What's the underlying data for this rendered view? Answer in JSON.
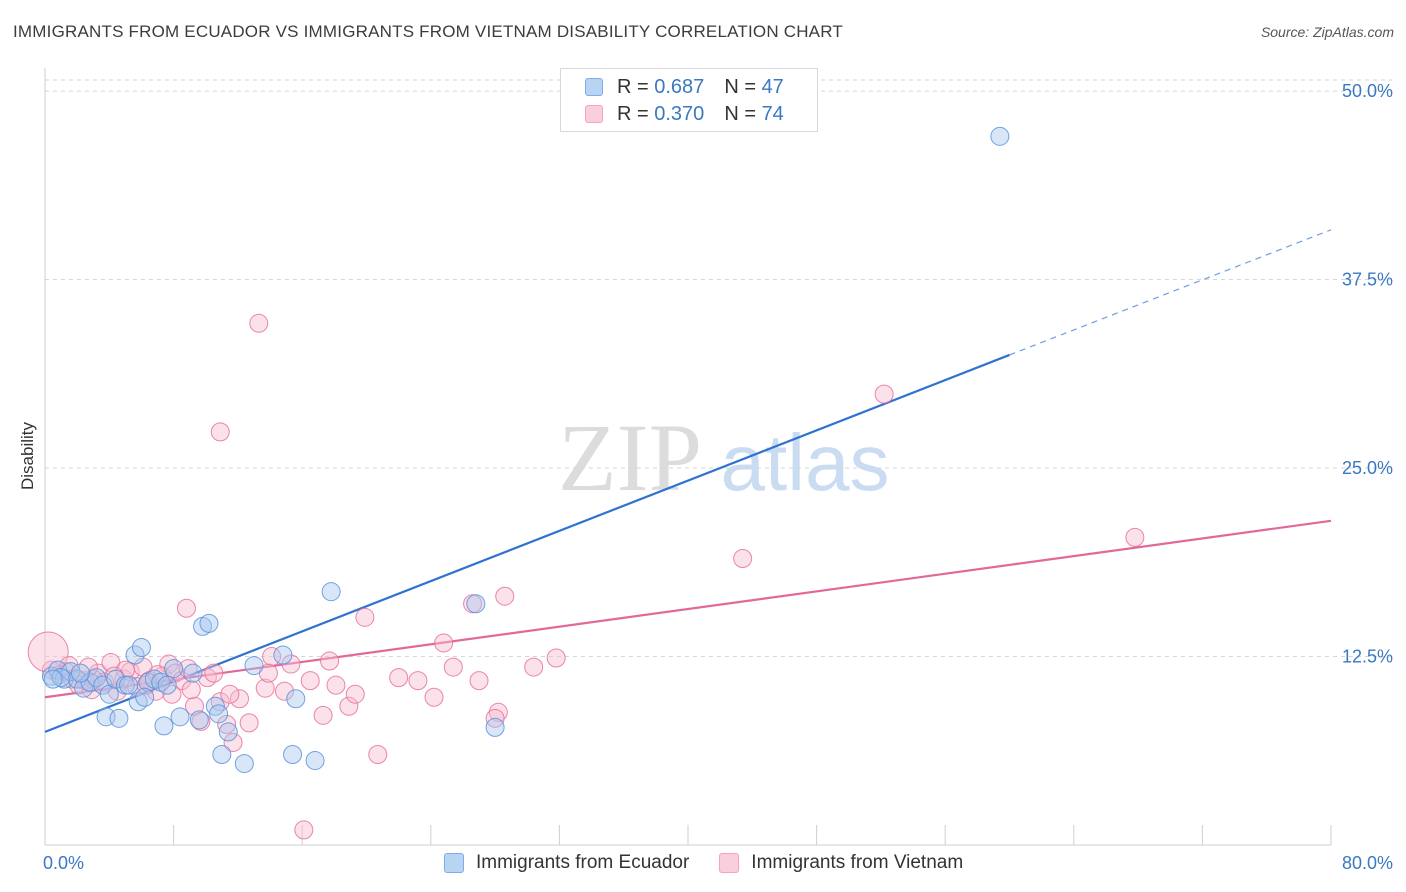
{
  "title": "IMMIGRANTS FROM ECUADOR VS IMMIGRANTS FROM VIETNAM DISABILITY CORRELATION CHART",
  "source": "Source: ZipAtlas.com",
  "watermark": {
    "zip": "ZIP",
    "atlas": "atlas"
  },
  "legend": [
    {
      "r_label": "R =",
      "r_value": "0.687",
      "n_label": "N =",
      "n_value": "47",
      "color": "#7aaeea"
    },
    {
      "r_label": "R =",
      "r_value": "0.370",
      "n_label": "N =",
      "n_value": "74",
      "color": "#f4a4bf"
    }
  ],
  "bottom_legend": [
    "Immigrants from Ecuador",
    "Immigrants from Vietnam"
  ],
  "chart_data": {
    "type": "scatter",
    "title": "IMMIGRANTS FROM ECUADOR VS IMMIGRANTS FROM VIETNAM DISABILITY CORRELATION CHART",
    "xlabel": "",
    "ylabel": "Disability",
    "xlim": [
      0,
      80
    ],
    "ylim": [
      0,
      51
    ],
    "x_tick_labels": [
      "0.0%",
      "80.0%"
    ],
    "y_ticks": [
      12.5,
      25.0,
      37.5,
      50.0
    ],
    "y_tick_labels": [
      "12.5%",
      "25.0%",
      "37.5%",
      "50.0%"
    ],
    "grid": true,
    "legend_position": "top-center",
    "series": [
      {
        "name": "Immigrants from Ecuador",
        "color": "#5b93db",
        "fill": "#a9c8f0",
        "trend": {
          "x": [
            0,
            60
          ],
          "y": [
            7.5,
            32.5
          ],
          "dashed_to": [
            80,
            40.8
          ]
        },
        "points": [
          [
            0.4,
            11.2
          ],
          [
            0.8,
            11.6
          ],
          [
            1.2,
            11.0
          ],
          [
            1.6,
            11.5
          ],
          [
            2.0,
            11.0
          ],
          [
            2.4,
            10.4
          ],
          [
            2.8,
            10.8
          ],
          [
            3.2,
            11.1
          ],
          [
            3.6,
            10.6
          ],
          [
            4.0,
            10.0
          ],
          [
            4.4,
            11.0
          ],
          [
            5.0,
            10.6
          ],
          [
            3.8,
            8.5
          ],
          [
            4.6,
            8.4
          ],
          [
            5.6,
            12.6
          ],
          [
            5.2,
            10.6
          ],
          [
            5.8,
            9.5
          ],
          [
            6.4,
            10.8
          ],
          [
            6.0,
            13.1
          ],
          [
            6.2,
            9.8
          ],
          [
            6.8,
            11.0
          ],
          [
            7.2,
            10.8
          ],
          [
            7.6,
            10.6
          ],
          [
            8.0,
            11.7
          ],
          [
            7.4,
            7.9
          ],
          [
            8.4,
            8.5
          ],
          [
            9.2,
            11.4
          ],
          [
            9.6,
            8.3
          ],
          [
            9.8,
            14.5
          ],
          [
            10.2,
            14.7
          ],
          [
            10.6,
            9.2
          ],
          [
            10.8,
            8.7
          ],
          [
            11.4,
            7.5
          ],
          [
            11.0,
            6.0
          ],
          [
            12.4,
            5.4
          ],
          [
            13.0,
            11.9
          ],
          [
            14.8,
            12.6
          ],
          [
            15.6,
            9.7
          ],
          [
            15.4,
            6.0
          ],
          [
            16.8,
            5.6
          ],
          [
            17.8,
            16.8
          ],
          [
            26.8,
            16.0
          ],
          [
            28.0,
            7.8
          ],
          [
            59.4,
            47.0
          ],
          [
            1.0,
            11.1
          ],
          [
            2.2,
            11.4
          ],
          [
            0.5,
            11.0
          ]
        ]
      },
      {
        "name": "Immigrants from Vietnam",
        "color": "#e8719b",
        "fill": "#f7bcd0",
        "trend": {
          "x": [
            0,
            80
          ],
          "y": [
            9.8,
            21.5
          ]
        },
        "points": [
          [
            0.4,
            11.6
          ],
          [
            0.9,
            11.3
          ],
          [
            1.3,
            11.5
          ],
          [
            1.7,
            11.0
          ],
          [
            2.1,
            10.6
          ],
          [
            2.5,
            10.9
          ],
          [
            2.9,
            10.3
          ],
          [
            3.3,
            11.4
          ],
          [
            3.7,
            10.8
          ],
          [
            4.1,
            12.1
          ],
          [
            4.5,
            10.2
          ],
          [
            4.9,
            11.0
          ],
          [
            5.3,
            11.5
          ],
          [
            5.7,
            10.5
          ],
          [
            6.1,
            11.8
          ],
          [
            6.5,
            10.9
          ],
          [
            6.9,
            10.2
          ],
          [
            7.3,
            11.2
          ],
          [
            7.7,
            12.0
          ],
          [
            8.1,
            11.4
          ],
          [
            8.5,
            10.9
          ],
          [
            8.9,
            11.7
          ],
          [
            9.3,
            9.2
          ],
          [
            9.7,
            8.2
          ],
          [
            10.1,
            11.1
          ],
          [
            10.5,
            11.4
          ],
          [
            10.9,
            9.5
          ],
          [
            11.3,
            8.0
          ],
          [
            11.7,
            6.8
          ],
          [
            12.1,
            9.7
          ],
          [
            8.8,
            15.7
          ],
          [
            10.9,
            27.4
          ],
          [
            13.3,
            34.6
          ],
          [
            13.7,
            10.4
          ],
          [
            14.1,
            12.5
          ],
          [
            14.9,
            10.2
          ],
          [
            16.5,
            10.9
          ],
          [
            17.3,
            8.6
          ],
          [
            18.1,
            10.6
          ],
          [
            18.9,
            9.2
          ],
          [
            19.3,
            10.0
          ],
          [
            19.9,
            15.1
          ],
          [
            20.7,
            6.0
          ],
          [
            23.2,
            10.9
          ],
          [
            24.2,
            9.8
          ],
          [
            24.8,
            13.4
          ],
          [
            25.4,
            11.8
          ],
          [
            26.6,
            16.0
          ],
          [
            27.0,
            10.9
          ],
          [
            28.2,
            8.8
          ],
          [
            28.6,
            16.5
          ],
          [
            30.4,
            11.8
          ],
          [
            31.8,
            12.4
          ],
          [
            43.4,
            19.0
          ],
          [
            52.2,
            29.9
          ],
          [
            67.8,
            20.4
          ],
          [
            16.1,
            1.0
          ],
          [
            0.2,
            12.8
          ],
          [
            1.5,
            11.9
          ],
          [
            3.0,
            11.0
          ],
          [
            6.3,
            10.6
          ],
          [
            7.9,
            10.0
          ],
          [
            9.1,
            10.3
          ],
          [
            12.7,
            8.1
          ],
          [
            15.3,
            12.0
          ],
          [
            5.0,
            11.6
          ],
          [
            2.7,
            11.8
          ],
          [
            4.3,
            11.2
          ],
          [
            7.0,
            11.3
          ],
          [
            11.5,
            10.0
          ],
          [
            13.9,
            11.4
          ],
          [
            17.7,
            12.2
          ],
          [
            22.0,
            11.1
          ],
          [
            28.0,
            8.4
          ]
        ]
      }
    ]
  }
}
